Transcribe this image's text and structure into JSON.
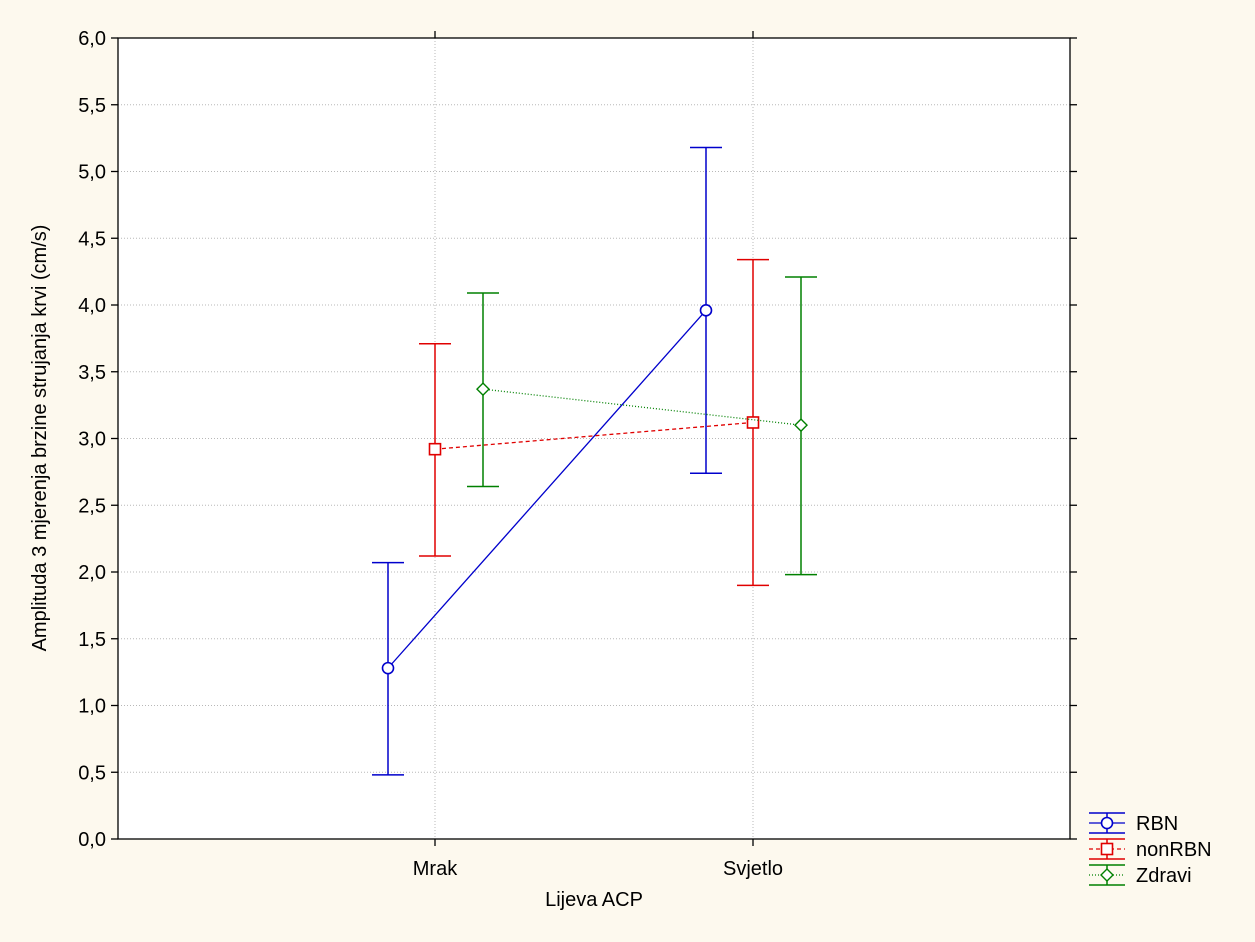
{
  "chart_data": {
    "type": "line",
    "title": "",
    "xlabel": "Lijeva ACP",
    "ylabel": "Amplituda 3 mjerenja brzine strujanja krvi (cm/s)",
    "ylim": [
      0.0,
      6.0
    ],
    "yticks": [
      "0,0",
      "0,5",
      "1,0",
      "1,5",
      "2,0",
      "2,5",
      "3,0",
      "3,5",
      "4,0",
      "4,5",
      "5,0",
      "5,5",
      "6,0"
    ],
    "ytick_values": [
      0.0,
      0.5,
      1.0,
      1.5,
      2.0,
      2.5,
      3.0,
      3.5,
      4.0,
      4.5,
      5.0,
      5.5,
      6.0
    ],
    "categories": [
      "Mrak",
      "Svjetlo"
    ],
    "grid": true,
    "legend_position": "bottom-right",
    "error_bars": true,
    "series": [
      {
        "name": "RBN",
        "color": "#0000cc",
        "marker": "circle",
        "line_style": "solid",
        "values": [
          1.28,
          3.96
        ],
        "lower": [
          0.48,
          2.74
        ],
        "upper": [
          2.07,
          5.18
        ]
      },
      {
        "name": "nonRBN",
        "color": "#e00000",
        "marker": "square",
        "line_style": "dashed",
        "values": [
          2.92,
          3.12
        ],
        "lower": [
          2.12,
          1.9
        ],
        "upper": [
          3.71,
          4.34
        ]
      },
      {
        "name": "Zdravi",
        "color": "#008000",
        "marker": "diamond",
        "line_style": "dotted",
        "values": [
          3.37,
          3.1
        ],
        "lower": [
          2.64,
          1.98
        ],
        "upper": [
          4.09,
          4.21
        ]
      }
    ]
  }
}
